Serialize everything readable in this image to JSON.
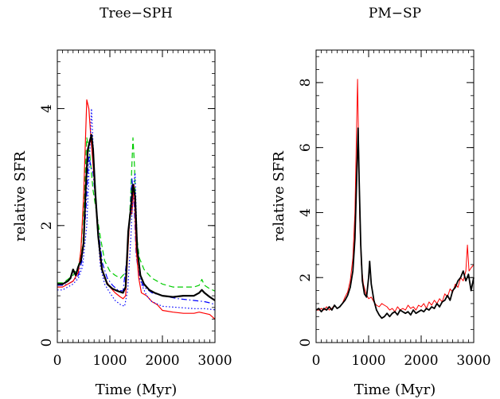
{
  "figure": {
    "panels_note": ""
  },
  "chart_data": [
    {
      "type": "line",
      "title": "Tree−SPH",
      "xlabel": "Time (Myr)",
      "ylabel": "relative SFR",
      "xlim": [
        0,
        3000
      ],
      "ylim": [
        0,
        5
      ],
      "xticks": [
        0,
        1000,
        2000,
        3000
      ],
      "xtick_labels": [
        "0",
        "1000",
        "2000",
        "3000"
      ],
      "yticks": [
        0,
        2,
        4
      ],
      "ytick_labels": [
        "0",
        "2",
        "4"
      ],
      "grid": false,
      "legend": "none",
      "series": [
        {
          "color": "#00cc00",
          "style": "dashed",
          "width": 1.2,
          "x": [
            0,
            100,
            200,
            300,
            400,
            450,
            500,
            560,
            620,
            680,
            750,
            820,
            900,
            1000,
            1100,
            1200,
            1300,
            1350,
            1400,
            1440,
            1470,
            1500,
            1560,
            1650,
            1800,
            2000,
            2200,
            2400,
            2600,
            2700,
            2750,
            2800,
            2900,
            3000
          ],
          "y": [
            1.02,
            1.02,
            1.08,
            1.15,
            1.3,
            1.55,
            2.3,
            3.5,
            3.2,
            2.6,
            2.2,
            1.8,
            1.4,
            1.22,
            1.15,
            1.1,
            1.2,
            1.7,
            2.6,
            3.5,
            3.0,
            1.9,
            1.45,
            1.25,
            1.1,
            1.0,
            0.95,
            0.95,
            0.95,
            0.98,
            1.08,
            0.98,
            0.92,
            0.88
          ]
        },
        {
          "color": "#0000ff",
          "style": "dashdot",
          "width": 1.2,
          "x": [
            0,
            100,
            200,
            300,
            400,
            470,
            540,
            600,
            640,
            680,
            720,
            780,
            860,
            950,
            1050,
            1150,
            1250,
            1320,
            1380,
            1420,
            1460,
            1500,
            1560,
            1650,
            1800,
            2000,
            2300,
            2600,
            2800,
            2900,
            3000
          ],
          "y": [
            0.98,
            0.98,
            1.0,
            1.05,
            1.15,
            1.4,
            2.2,
            3.2,
            3.0,
            2.9,
            2.5,
            1.9,
            1.35,
            1.1,
            0.98,
            0.9,
            0.88,
            1.4,
            2.1,
            2.8,
            2.4,
            1.5,
            1.1,
            0.95,
            0.85,
            0.8,
            0.75,
            0.72,
            0.7,
            0.68,
            0.65
          ]
        },
        {
          "color": "#ff0000",
          "style": "solid",
          "width": 1.2,
          "x": [
            0,
            100,
            200,
            300,
            400,
            450,
            500,
            560,
            600,
            640,
            700,
            760,
            820,
            900,
            1000,
            1100,
            1200,
            1250,
            1300,
            1340,
            1380,
            1420,
            1460,
            1500,
            1550,
            1600,
            1700,
            1800,
            1900,
            2000,
            2200,
            2400,
            2600,
            2700,
            2800,
            2900,
            3000
          ],
          "y": [
            0.95,
            0.95,
            1.0,
            1.05,
            1.2,
            1.6,
            2.5,
            4.15,
            4.0,
            3.5,
            2.8,
            2.0,
            1.4,
            1.1,
            0.95,
            0.85,
            0.78,
            0.75,
            0.8,
            1.5,
            2.2,
            2.2,
            2.7,
            1.6,
            1.1,
            0.85,
            0.8,
            0.7,
            0.65,
            0.55,
            0.52,
            0.5,
            0.5,
            0.52,
            0.5,
            0.48,
            0.4
          ]
        },
        {
          "color": "#0000ff",
          "style": "dotted",
          "width": 1.2,
          "x": [
            0,
            100,
            200,
            300,
            400,
            480,
            560,
            620,
            650,
            700,
            760,
            820,
            900,
            1000,
            1100,
            1200,
            1280,
            1340,
            1400,
            1440,
            1480,
            1520,
            1600,
            1700,
            1800,
            2000,
            2300,
            2600,
            2800,
            3000
          ],
          "y": [
            0.9,
            0.9,
            0.95,
            1.0,
            1.1,
            1.3,
            2.0,
            3.3,
            4.0,
            3.0,
            2.0,
            1.3,
            1.0,
            0.85,
            0.72,
            0.65,
            0.62,
            0.9,
            1.8,
            2.6,
            2.9,
            1.7,
            1.0,
            0.8,
            0.7,
            0.62,
            0.6,
            0.58,
            0.58,
            0.56
          ]
        },
        {
          "color": "#000000",
          "style": "solid",
          "width": 2.2,
          "x": [
            0,
            100,
            200,
            250,
            300,
            350,
            400,
            450,
            500,
            540,
            580,
            620,
            650,
            680,
            720,
            780,
            850,
            950,
            1050,
            1150,
            1250,
            1300,
            1350,
            1400,
            1440,
            1480,
            1520,
            1580,
            1650,
            1750,
            1850,
            2000,
            2200,
            2400,
            2600,
            2700,
            2750,
            2800,
            2900,
            3000
          ],
          "y": [
            1.0,
            1.0,
            1.05,
            1.1,
            1.25,
            1.15,
            1.3,
            1.4,
            1.7,
            2.6,
            3.3,
            3.45,
            3.55,
            3.3,
            2.6,
            1.8,
            1.25,
            1.0,
            0.92,
            0.88,
            0.85,
            0.95,
            1.9,
            2.3,
            2.7,
            2.5,
            1.6,
            1.15,
            1.0,
            0.9,
            0.85,
            0.8,
            0.78,
            0.8,
            0.8,
            0.85,
            0.9,
            0.85,
            0.78,
            0.72
          ]
        }
      ]
    },
    {
      "type": "line",
      "title": "PM−SP",
      "xlabel": "Time (Myr)",
      "ylabel": "relative SFR",
      "xlim": [
        0,
        3000
      ],
      "ylim": [
        0,
        9
      ],
      "xticks": [
        0,
        1000,
        2000,
        3000
      ],
      "xtick_labels": [
        "0",
        "1000",
        "2000",
        "3000"
      ],
      "yticks": [
        0,
        2,
        4,
        6,
        8
      ],
      "ytick_labels": [
        "0",
        "2",
        "4",
        "6",
        "8"
      ],
      "grid": false,
      "legend": "none",
      "series": [
        {
          "color": "#ff0000",
          "style": "solid",
          "width": 1.0,
          "x": [
            0,
            50,
            100,
            150,
            200,
            250,
            300,
            350,
            400,
            450,
            500,
            550,
            600,
            650,
            700,
            740,
            770,
            790,
            810,
            830,
            860,
            900,
            950,
            1000,
            1050,
            1100,
            1150,
            1200,
            1250,
            1300,
            1350,
            1400,
            1450,
            1500,
            1550,
            1600,
            1650,
            1700,
            1750,
            1800,
            1850,
            1900,
            1950,
            2000,
            2050,
            2100,
            2150,
            2200,
            2250,
            2300,
            2350,
            2400,
            2450,
            2500,
            2550,
            2600,
            2650,
            2700,
            2750,
            2800,
            2850,
            2880,
            2910,
            2950,
            3000
          ],
          "y": [
            1.0,
            1.0,
            1.05,
            1.0,
            1.1,
            1.0,
            1.05,
            1.15,
            1.05,
            1.1,
            1.2,
            1.4,
            1.55,
            1.9,
            2.6,
            4.0,
            6.5,
            8.1,
            6.0,
            3.8,
            2.4,
            1.8,
            1.5,
            1.35,
            1.4,
            1.25,
            1.15,
            1.1,
            1.2,
            1.15,
            1.1,
            1.0,
            1.05,
            0.95,
            1.1,
            1.0,
            1.05,
            1.0,
            1.15,
            1.05,
            1.1,
            1.0,
            1.15,
            1.1,
            1.2,
            1.05,
            1.25,
            1.15,
            1.3,
            1.2,
            1.35,
            1.25,
            1.5,
            1.4,
            1.65,
            1.55,
            1.8,
            1.7,
            2.0,
            1.9,
            2.2,
            3.0,
            2.2,
            2.3,
            2.4
          ]
        },
        {
          "color": "#000000",
          "style": "solid",
          "width": 1.8,
          "x": [
            0,
            50,
            100,
            150,
            200,
            250,
            300,
            350,
            400,
            450,
            500,
            550,
            600,
            650,
            700,
            740,
            780,
            800,
            820,
            850,
            880,
            920,
            960,
            1000,
            1020,
            1050,
            1100,
            1150,
            1200,
            1250,
            1300,
            1350,
            1400,
            1450,
            1500,
            1550,
            1600,
            1650,
            1700,
            1750,
            1800,
            1850,
            1900,
            1950,
            2000,
            2050,
            2100,
            2150,
            2200,
            2250,
            2300,
            2350,
            2400,
            2450,
            2500,
            2550,
            2600,
            2650,
            2700,
            2750,
            2800,
            2850,
            2900,
            2950,
            3000
          ],
          "y": [
            1.0,
            1.05,
            0.95,
            1.05,
            1.0,
            1.1,
            1.0,
            1.15,
            1.05,
            1.1,
            1.2,
            1.3,
            1.45,
            1.7,
            2.2,
            3.2,
            5.5,
            6.6,
            5.0,
            3.0,
            1.9,
            1.5,
            1.4,
            2.0,
            2.5,
            1.8,
            1.3,
            1.0,
            0.85,
            0.75,
            0.8,
            0.9,
            0.8,
            0.9,
            0.95,
            0.85,
            1.0,
            0.95,
            0.9,
            0.95,
            0.85,
            1.0,
            0.9,
            0.95,
            1.0,
            0.95,
            1.05,
            1.0,
            1.1,
            1.05,
            1.2,
            1.1,
            1.25,
            1.3,
            1.45,
            1.3,
            1.6,
            1.7,
            1.9,
            2.0,
            2.2,
            1.9,
            2.1,
            1.6,
            2.0
          ]
        }
      ]
    }
  ]
}
